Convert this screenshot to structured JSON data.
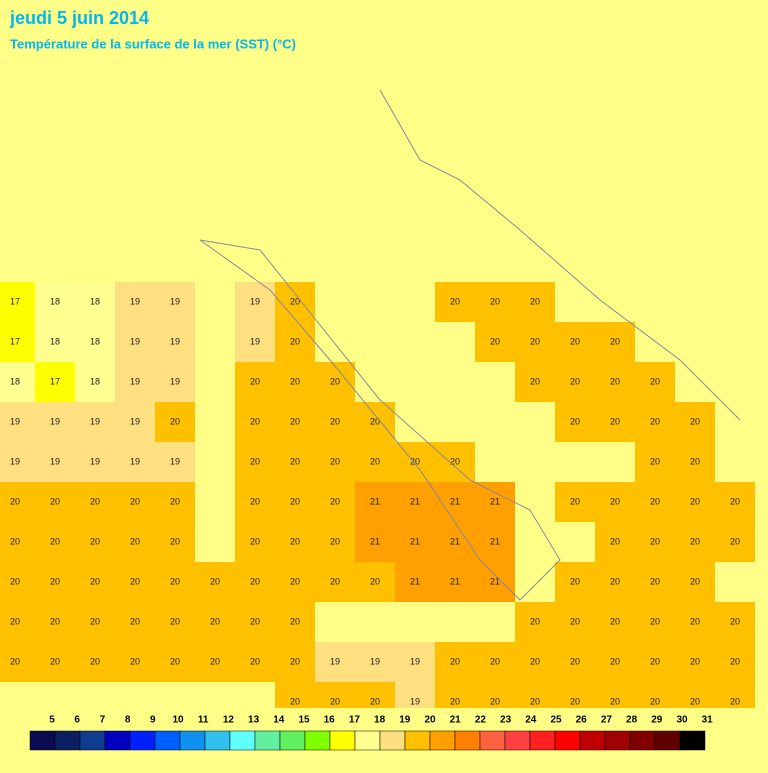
{
  "header": {
    "date": "jeudi 5 juin 2014",
    "subtitle": "Température de la surface de la mer (SST) (°C)"
  },
  "sst_map": {
    "grid": [
      [
        17,
        18,
        18,
        19,
        19,
        null,
        19,
        20,
        null,
        null,
        null,
        20,
        20,
        20,
        null,
        null,
        null,
        null,
        null
      ],
      [
        17,
        18,
        18,
        19,
        19,
        null,
        19,
        20,
        null,
        null,
        null,
        null,
        20,
        20,
        20,
        20,
        null,
        null,
        null
      ],
      [
        18,
        17,
        18,
        19,
        19,
        null,
        20,
        20,
        20,
        null,
        null,
        null,
        null,
        20,
        20,
        20,
        20,
        null,
        null
      ],
      [
        19,
        19,
        19,
        19,
        20,
        null,
        20,
        20,
        20,
        20,
        null,
        null,
        null,
        null,
        20,
        20,
        20,
        20,
        null
      ],
      [
        19,
        19,
        19,
        19,
        19,
        null,
        20,
        20,
        20,
        20,
        20,
        20,
        null,
        null,
        null,
        null,
        20,
        20,
        null
      ],
      [
        20,
        20,
        20,
        20,
        20,
        null,
        20,
        20,
        20,
        21,
        21,
        21,
        21,
        null,
        20,
        20,
        20,
        20,
        20
      ],
      [
        20,
        20,
        20,
        20,
        20,
        null,
        20,
        20,
        20,
        21,
        21,
        21,
        21,
        null,
        null,
        20,
        20,
        20,
        20
      ],
      [
        20,
        20,
        20,
        20,
        20,
        20,
        20,
        20,
        20,
        20,
        21,
        21,
        21,
        null,
        20,
        20,
        20,
        20,
        null
      ],
      [
        20,
        20,
        20,
        20,
        20,
        20,
        20,
        20,
        null,
        null,
        null,
        null,
        null,
        20,
        20,
        20,
        20,
        20,
        20
      ],
      [
        20,
        20,
        20,
        20,
        20,
        20,
        20,
        20,
        19,
        19,
        19,
        20,
        20,
        20,
        20,
        20,
        20,
        20,
        20
      ],
      [
        null,
        null,
        null,
        null,
        null,
        null,
        null,
        20,
        20,
        20,
        19,
        20,
        20,
        20,
        20,
        20,
        20,
        20,
        20
      ]
    ]
  },
  "legend": {
    "labels": [
      5,
      6,
      7,
      8,
      9,
      10,
      11,
      12,
      13,
      14,
      15,
      16,
      17,
      18,
      19,
      20,
      21,
      22,
      23,
      24,
      25,
      26,
      27,
      28,
      29,
      30,
      31
    ],
    "colors": [
      "#0a0a50",
      "#0a2060",
      "#103c90",
      "#0000c0",
      "#0020ff",
      "#0060ff",
      "#1090f0",
      "#30c0f0",
      "#60ffff",
      "#60f0a0",
      "#60f060",
      "#80ff00",
      "#ffff00",
      "#ffff90",
      "#ffe080",
      "#ffc000",
      "#ffa000",
      "#ff8000",
      "#ff6040",
      "#ff4040",
      "#ff2020",
      "#ff0000",
      "#c00000",
      "#a00000",
      "#800000",
      "#600000",
      "#000000"
    ]
  }
}
